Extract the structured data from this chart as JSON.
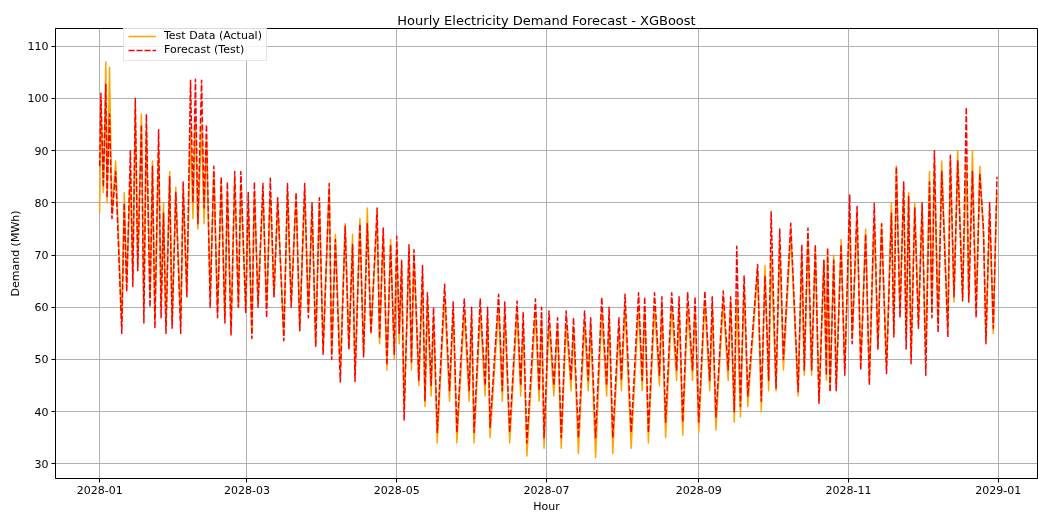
{
  "chart_data": {
    "type": "line",
    "title": "Hourly Electricity Demand Forecast - XGBoost",
    "xlabel": "Hour",
    "ylabel": "Demand (MWh)",
    "x": [
      "2028-01-01T00:00",
      "2028-01-01T12:00",
      "2028-01-02T12:00",
      "2028-01-03T12:00",
      "2028-01-04T00:00",
      "2028-01-05T00:00",
      "2028-01-06T00:00",
      "2028-01-07T12:00",
      "2028-01-10T00:00",
      "2028-01-11T00:00",
      "2028-01-12T00:00",
      "2028-01-13T12:00",
      "2028-01-14T12:00",
      "2028-01-15T12:00",
      "2028-01-16T12:00",
      "2028-01-18T00:00",
      "2028-01-19T00:00",
      "2028-01-20T00:00",
      "2028-01-21T12:00",
      "2028-01-22T12:00",
      "2028-01-23T12:00",
      "2028-01-25T00:00",
      "2028-01-26T00:00",
      "2028-01-27T00:00",
      "2028-01-28T00:00",
      "2028-01-29T12:00",
      "2028-01-30T12:00",
      "2028-02-01T00:00",
      "2028-02-03T00:00",
      "2028-02-04T00:00",
      "2028-02-05T12:00",
      "2028-02-07T00:00",
      "2028-02-08T00:00",
      "2028-02-09T00:00",
      "2028-02-10T00:00",
      "2028-02-11T12:00",
      "2028-02-12T12:00",
      "2028-02-13T12:00",
      "2028-02-15T00:00",
      "2028-02-16T12:00",
      "2028-02-18T00:00",
      "2028-02-19T12:00",
      "2028-02-21T00:00",
      "2028-02-22T00:00",
      "2028-02-23T12:00",
      "2028-02-25T00:00",
      "2028-02-26T12:00",
      "2028-02-27T12:00",
      "2028-02-29T12:00",
      "2028-03-01T12:00",
      "2028-03-03T00:00",
      "2028-03-04T00:00",
      "2028-03-05T12:00",
      "2028-03-07T12:00",
      "2028-03-09T00:00",
      "2028-03-10T12:00",
      "2028-03-12T00:00",
      "2028-03-13T12:00",
      "2028-03-16T00:00",
      "2028-03-17T12:00",
      "2028-03-19T00:00",
      "2028-03-21T00:00",
      "2028-03-22T12:00",
      "2028-03-24T12:00",
      "2028-03-26T00:00",
      "2028-03-27T12:00",
      "2028-03-29T00:00",
      "2028-03-30T12:00",
      "2028-04-01T00:00",
      "2028-04-03T12:00",
      "2028-04-04T12:00",
      "2028-04-06T00:00",
      "2028-04-08T00:00",
      "2028-04-10T00:00",
      "2028-04-11T12:00",
      "2028-04-13T00:00",
      "2028-04-14T00:00",
      "2028-04-16T00:00",
      "2028-04-17T12:00",
      "2028-04-19T00:00",
      "2028-04-20T12:00",
      "2028-04-23T00:00",
      "2028-04-24T00:00",
      "2028-04-25T12:00",
      "2028-04-27T00:00",
      "2028-04-28T12:00",
      "2028-04-30T00:00",
      "2028-05-01T00:00",
      "2028-05-02T00:00",
      "2028-05-03T00:00",
      "2028-05-04T00:00",
      "2028-05-06T00:00",
      "2028-05-07T00:00",
      "2028-05-08T00:00",
      "2028-05-10T00:00",
      "2028-05-11T12:00",
      "2028-05-12T12:00",
      "2028-05-13T12:00",
      "2028-05-15T00:00",
      "2028-05-16T00:00",
      "2028-05-17T12:00",
      "2028-05-20T12:00",
      "2028-05-22T12:00",
      "2028-05-24T00:00",
      "2028-05-25T12:00",
      "2028-05-28T12:00",
      "2028-05-30T12:00",
      "2028-05-31T12:00",
      "2028-06-01T12:00",
      "2028-06-04T00:00",
      "2028-06-06T00:00",
      "2028-06-07T00:00",
      "2028-06-08T00:00",
      "2028-06-11T12:00",
      "2028-06-13T00:00",
      "2028-06-14T00:00",
      "2028-06-16T00:00",
      "2028-06-19T00:00",
      "2028-06-20T12:00",
      "2028-06-21T12:00",
      "2028-06-23T00:00",
      "2028-06-26T12:00",
      "2028-06-28T00:00",
      "2028-06-29T00:00",
      "2028-06-30T00:00",
      "2028-07-02T00:00",
      "2028-07-04T00:00",
      "2028-07-05T12:00",
      "2028-07-07T00:00",
      "2028-07-09T00:00",
      "2028-07-11T00:00",
      "2028-07-12T00:00",
      "2028-07-14T00:00",
      "2028-07-16T12:00",
      "2028-07-18T00:00",
      "2028-07-19T00:00",
      "2028-07-21T00:00",
      "2028-07-23T12:00",
      "2028-07-25T12:00",
      "2028-07-26T12:00",
      "2028-07-28T00:00",
      "2028-07-30T12:00",
      "2028-07-31T12:00",
      "2028-08-02T00:00",
      "2028-08-04T12:00",
      "2028-08-07T12:00",
      "2028-08-09T00:00",
      "2028-08-10T00:00",
      "2028-08-11T12:00",
      "2028-08-14T00:00",
      "2028-08-16T00:00",
      "2028-08-17T00:00",
      "2028-08-18T12:00",
      "2028-08-21T00:00",
      "2028-08-23T00:00",
      "2028-08-24T00:00",
      "2028-08-25T12:00",
      "2028-08-27T12:00",
      "2028-08-29T12:00",
      "2028-08-30T12:00",
      "2028-09-01T00:00",
      "2028-09-03T12:00",
      "2028-09-05T12:00",
      "2028-09-06T12:00",
      "2028-09-08T00:00",
      "2028-09-11T00:00",
      "2028-09-13T00:00",
      "2028-09-14T00:00",
      "2028-09-15T12:00",
      "2028-09-16T12:00",
      "2028-09-18T00:00",
      "2028-09-19T12:00",
      "2028-09-21T00:00",
      "2028-09-25T00:00",
      "2028-09-26T12:00",
      "2028-09-28T00:00",
      "2028-09-29T12:00",
      "2028-09-30T12:00",
      "2028-10-02T12:00",
      "2028-10-04T00:00",
      "2028-10-05T12:00",
      "2028-10-08T12:00",
      "2028-10-11T12:00",
      "2028-10-13T00:00",
      "2028-10-14T00:00",
      "2028-10-15T12:00",
      "2028-10-17T00:00",
      "2028-10-18T12:00",
      "2028-10-20T00:00",
      "2028-10-22T00:00",
      "2028-10-23T00:00",
      "2028-10-23T12:00",
      "2028-10-24T12:00",
      "2028-10-26T00:00",
      "2028-10-27T00:00",
      "2028-10-29T00:00",
      "2028-10-30T12:00",
      "2028-11-01T12:00",
      "2028-11-02T12:00",
      "2028-11-04T12:00",
      "2028-11-06T00:00",
      "2028-11-08T00:00",
      "2028-11-09T12:00",
      "2028-11-11T12:00",
      "2028-11-13T00:00",
      "2028-11-14T12:00",
      "2028-11-16T12:00",
      "2028-11-18T12:00",
      "2028-11-19T12:00",
      "2028-11-20T12:00",
      "2028-11-22T00:00",
      "2028-11-23T12:00",
      "2028-11-24T12:00",
      "2028-11-25T12:00",
      "2028-11-26T12:00",
      "2028-11-28T00:00",
      "2028-11-29T12:00",
      "2028-12-01T00:00",
      "2028-12-02T12:00",
      "2028-12-04T00:00",
      "2028-12-05T00:00",
      "2028-12-06T00:00",
      "2028-12-07T12:00",
      "2028-12-09T00:00",
      "2028-12-11T12:00",
      "2028-12-12T12:00",
      "2028-12-14T00:00",
      "2028-12-15T12:00",
      "2028-12-17T12:00",
      "2028-12-19T00:00",
      "2028-12-20T00:00",
      "2028-12-21T12:00",
      "2028-12-23T00:00",
      "2028-12-24T12:00",
      "2028-12-26T00:00",
      "2028-12-27T00:00",
      "2028-12-28T12:00",
      "2028-12-30T00:00",
      "2028-12-31T00:00",
      "2028-12-31T12:00"
    ],
    "series": [
      {
        "name": "Test Data (Actual)",
        "color": "#ffa500",
        "line_style": "solid",
        "values": [
          78,
          99,
          82,
          107,
          80,
          106,
          78,
          88,
          57,
          82,
          64,
          86,
          66,
          98,
          68,
          97,
          60,
          94,
          62,
          88,
          58,
          90,
          60,
          80,
          57,
          86,
          57,
          83,
          57,
          82,
          63,
          94,
          77,
          96,
          75,
          95,
          76,
          92,
          62,
          86,
          59,
          84,
          58,
          82,
          56,
          84,
          60,
          83,
          60,
          80,
          55,
          82,
          61,
          82,
          60,
          82,
          62,
          80,
          55,
          82,
          61,
          81,
          56,
          82,
          59,
          79,
          53,
          80,
          52,
          83,
          51,
          74,
          48,
          76,
          52,
          74,
          47,
          77,
          51,
          79,
          55,
          77,
          53,
          74,
          48,
          73,
          50,
          72,
          53,
          68,
          41,
          71,
          48,
          70,
          45,
          66,
          41,
          61,
          43,
          58,
          34,
          62,
          42,
          59,
          34,
          59,
          42,
          58,
          34,
          59,
          43,
          58,
          35,
          60,
          42,
          59,
          34,
          59,
          43,
          57,
          31.5,
          59,
          42,
          58,
          33,
          57,
          43,
          56,
          33,
          57,
          44,
          56,
          32,
          57,
          44,
          56,
          31.2,
          59,
          43,
          58,
          32,
          56,
          44,
          60,
          33,
          60,
          44,
          60,
          34,
          60,
          45,
          60,
          35,
          60,
          46,
          60,
          35.5,
          60,
          46,
          60,
          36,
          61,
          44,
          60,
          36.5,
          61,
          46,
          61,
          38,
          62,
          39,
          64,
          41,
          67,
          40,
          68,
          44,
          70,
          44,
          72,
          48,
          74,
          43,
          70,
          47,
          73,
          47,
          71,
          42,
          69,
          46,
          71,
          44,
          70,
          45,
          73,
          48,
          78,
          54,
          77,
          49,
          75,
          46,
          77,
          52,
          76,
          49,
          80,
          55,
          87,
          59,
          83,
          54,
          82,
          51,
          80,
          57,
          79,
          51,
          86,
          59,
          88,
          57,
          88,
          56,
          88,
          61,
          90,
          62,
          88,
          62,
          90,
          59,
          87,
          74,
          54,
          78,
          55,
          74,
          82
        ]
      },
      {
        "name": "Forecast (Test)",
        "color": "#ff0000",
        "line_style": "dashed",
        "values": [
          87,
          101,
          83,
          102.7,
          81,
          97,
          77,
          86,
          55,
          80,
          63,
          90,
          64,
          100,
          67,
          95,
          57,
          97,
          60,
          87,
          56,
          94,
          58,
          78,
          55,
          85,
          56,
          82,
          55,
          84,
          62,
          103.5,
          80,
          103.7,
          76,
          103.5,
          79,
          95,
          60,
          87,
          58,
          85,
          57,
          84,
          54.6,
          86,
          60,
          86,
          59,
          82,
          54,
          84,
          60,
          83.7,
          58,
          84.7,
          62,
          81,
          53.6,
          83.7,
          60,
          82,
          55.5,
          83.7,
          58,
          80,
          52.4,
          81,
          51,
          83.7,
          50,
          73,
          45.7,
          75.5,
          52,
          72,
          45.8,
          76,
          50.5,
          76,
          55,
          79,
          54,
          75.2,
          48.9,
          72,
          51,
          73.6,
          55,
          69,
          38.4,
          72,
          49.5,
          71,
          46,
          68,
          42,
          62.8,
          45,
          60,
          36,
          64.4,
          44,
          61,
          36,
          61.6,
          44,
          60,
          36,
          61.6,
          45,
          60,
          37,
          62.5,
          44,
          61,
          36,
          61.2,
          45,
          59,
          34,
          61.6,
          44,
          60,
          35,
          59.3,
          45,
          58,
          35,
          59.3,
          46,
          58,
          35,
          59.3,
          46,
          58,
          35,
          61.9,
          45,
          60,
          35,
          58,
          46,
          62.5,
          36,
          62.8,
          46,
          62,
          36,
          62.8,
          47,
          62,
          38,
          62.8,
          48,
          62,
          38,
          62.8,
          48,
          62,
          38,
          63.1,
          46,
          62,
          39,
          63.1,
          48,
          62,
          40,
          71.7,
          41,
          66,
          43,
          68.2,
          42,
          66,
          46,
          78.3,
          44.5,
          75,
          50,
          76.1,
          43.8,
          72,
          48,
          75.2,
          48,
          72,
          41.6,
          69,
          47,
          71.4,
          43.8,
          69,
          44,
          72,
          47,
          81.5,
          53,
          79.3,
          48,
          74,
          45.1,
          79.9,
          52,
          76,
          47.3,
          78,
          54.3,
          86.9,
          58,
          84,
          52,
          81.2,
          49.2,
          79,
          56,
          80,
          47,
          84,
          58,
          90,
          55.2,
          86,
          54.3,
          89.1,
          62,
          88,
          61.2,
          98.3,
          61,
          86,
          58,
          85.6,
          75,
          53,
          80,
          56,
          75,
          85
        ]
      }
    ],
    "xlim": [
      "2027-12-14",
      "2029-01-17"
    ],
    "xticks": [
      "2028-01",
      "2028-03",
      "2028-05",
      "2028-07",
      "2028-09",
      "2028-11",
      "2029-01"
    ],
    "ylim": [
      27.2,
      113.4
    ],
    "yticks": [
      30,
      40,
      50,
      60,
      70,
      80,
      90,
      100,
      110
    ],
    "grid": true,
    "legend": "top left"
  }
}
